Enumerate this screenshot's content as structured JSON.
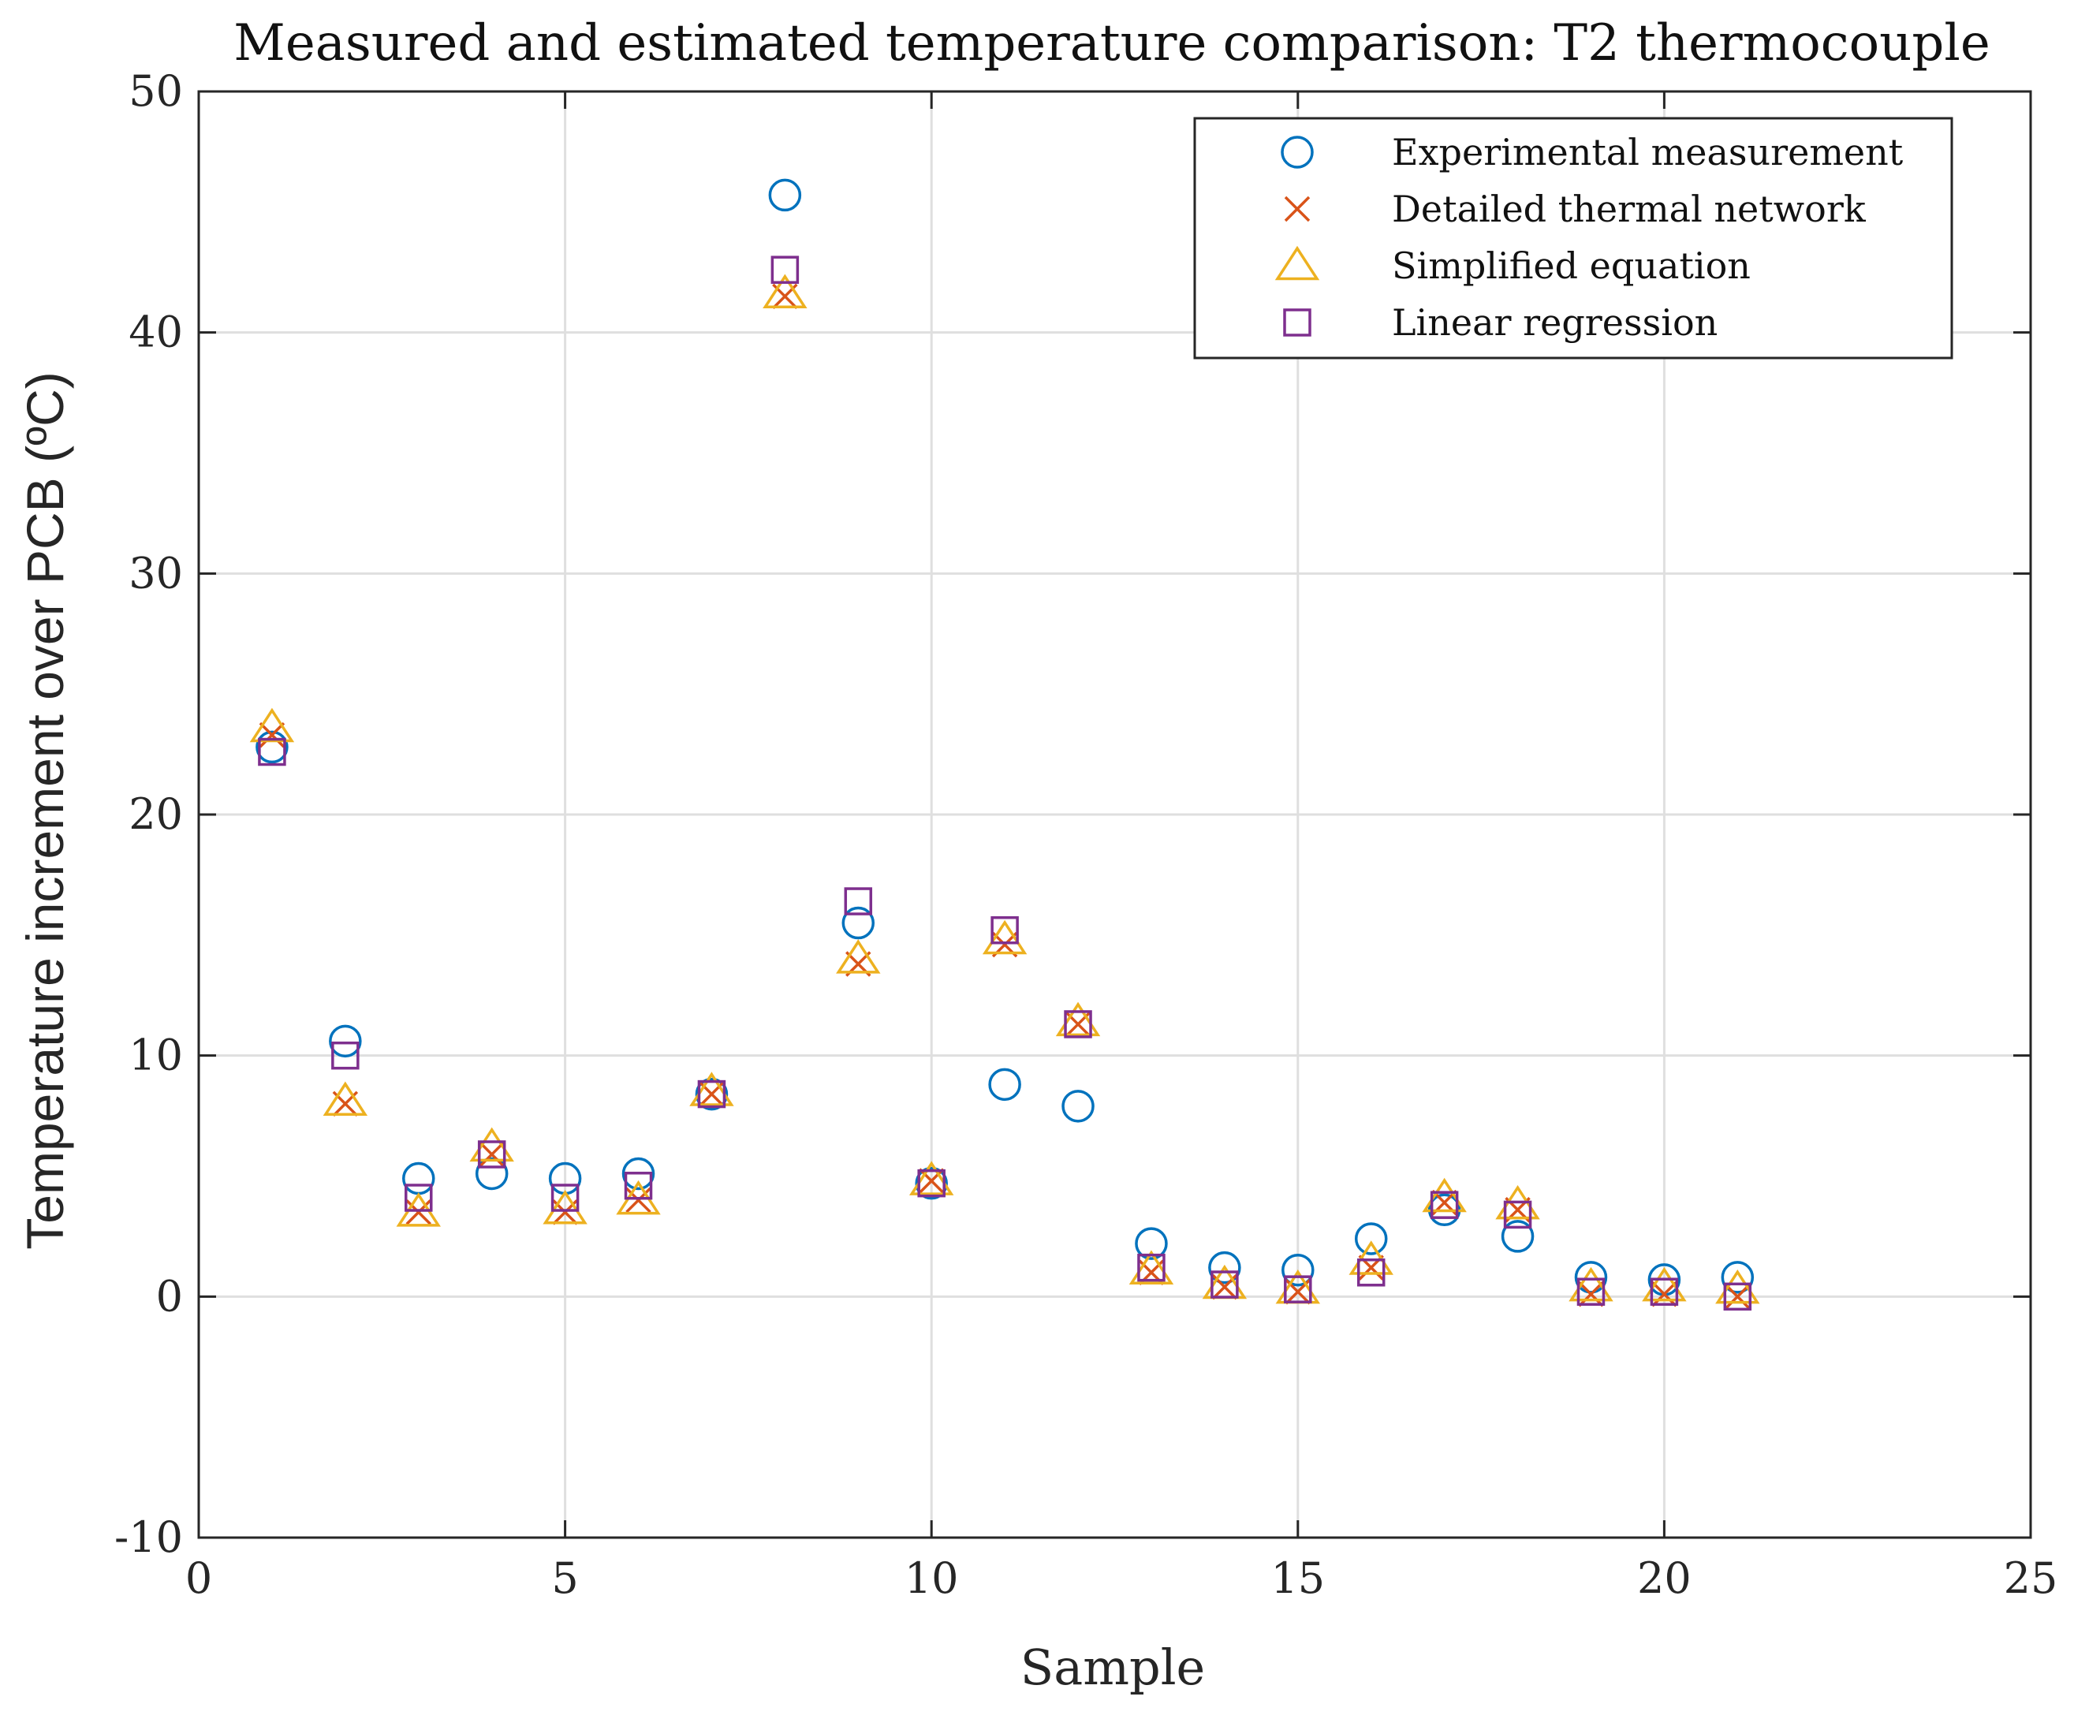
{
  "chart_data": {
    "type": "scatter",
    "title": "Measured and estimated temperature comparison: T2 thermocouple",
    "xlabel": "Sample",
    "ylabel": "Temperature increment over PCB (ºC)",
    "xlim": [
      0,
      25
    ],
    "ylim": [
      -10,
      50
    ],
    "xticks": [
      0,
      5,
      10,
      15,
      20,
      25
    ],
    "yticks": [
      -10,
      0,
      10,
      20,
      30,
      40,
      50
    ],
    "grid": true,
    "legend_position": "top-right",
    "x": [
      1,
      2,
      3,
      4,
      5,
      6,
      7,
      8,
      9,
      10,
      11,
      12,
      13,
      14,
      15,
      16,
      17,
      18,
      19,
      20,
      21
    ],
    "series": [
      {
        "name": "Experimental measurement",
        "marker": "circle",
        "color": "#0072BD",
        "values": [
          22.8,
          10.6,
          4.9,
          5.1,
          4.9,
          5.1,
          8.4,
          45.7,
          15.5,
          4.7,
          8.8,
          7.9,
          2.2,
          1.2,
          1.1,
          2.4,
          3.6,
          2.5,
          0.8,
          0.7,
          0.8
        ]
      },
      {
        "name": "Detailed thermal network",
        "marker": "x",
        "color": "#D95319",
        "values": [
          23.3,
          8.0,
          3.5,
          5.9,
          3.5,
          4.0,
          8.4,
          41.5,
          13.8,
          4.8,
          14.6,
          11.3,
          1.0,
          0.4,
          0.2,
          1.2,
          3.9,
          3.6,
          0.1,
          0.1,
          0.0
        ]
      },
      {
        "name": "Simplified equation",
        "marker": "triangle",
        "color": "#EDB120",
        "values": [
          23.6,
          8.1,
          3.5,
          6.2,
          3.6,
          4.0,
          8.5,
          41.6,
          14.0,
          4.8,
          14.8,
          11.4,
          1.1,
          0.5,
          0.3,
          1.5,
          4.1,
          3.8,
          0.4,
          0.4,
          0.3
        ]
      },
      {
        "name": "Linear regression",
        "marker": "square",
        "color": "#7E2F8E",
        "values": [
          22.6,
          10.0,
          4.1,
          5.9,
          4.1,
          4.6,
          8.4,
          42.6,
          16.4,
          4.7,
          15.2,
          11.3,
          1.2,
          0.5,
          0.3,
          1.0,
          3.8,
          3.4,
          0.2,
          0.2,
          0.0
        ]
      }
    ]
  },
  "colors": {
    "axis": "#262626",
    "grid": "#dfdfdf",
    "legend_border": "#262626"
  }
}
